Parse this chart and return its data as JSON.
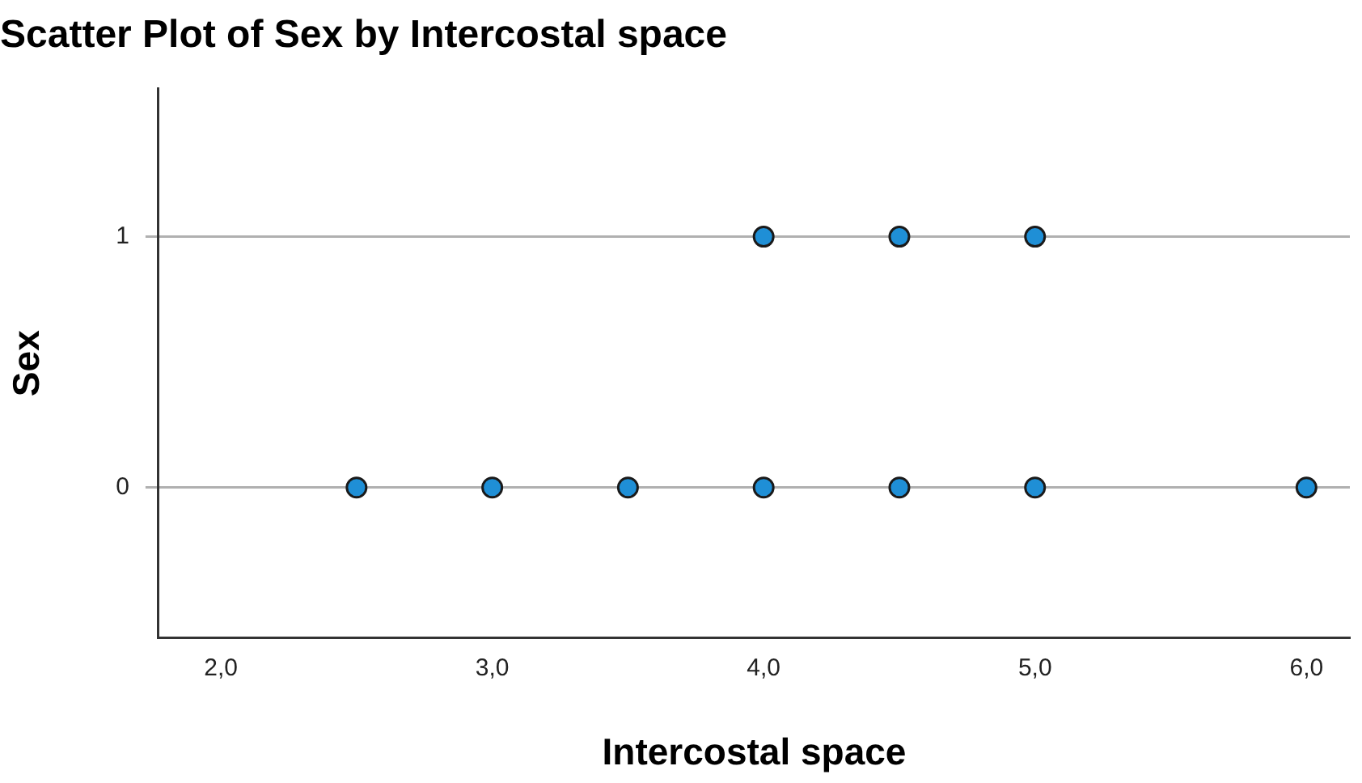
{
  "chart_data": {
    "type": "scatter",
    "title": "Scatter Plot of Sex by Intercostal space",
    "xlabel": "Intercostal space",
    "ylabel": "Sex",
    "xlim": [
      1.77,
      6.16
    ],
    "xticks": [
      {
        "value": 2,
        "label": "2,0"
      },
      {
        "value": 3,
        "label": "3,0"
      },
      {
        "value": 4,
        "label": "4,0"
      },
      {
        "value": 5,
        "label": "5,0"
      },
      {
        "value": 6,
        "label": "6,0"
      }
    ],
    "ylim": [
      -0.6,
      1.59
    ],
    "yticks": [
      0,
      1
    ],
    "grid": "y",
    "marker": "circle",
    "series": [
      {
        "color": "#1f8fd6",
        "x": [
          4,
          4.5,
          5,
          2.5,
          3,
          3.5,
          4,
          4.5,
          5,
          6
        ],
        "values": [
          1,
          1,
          1,
          0,
          0,
          0,
          0,
          0,
          0,
          0
        ]
      }
    ]
  }
}
